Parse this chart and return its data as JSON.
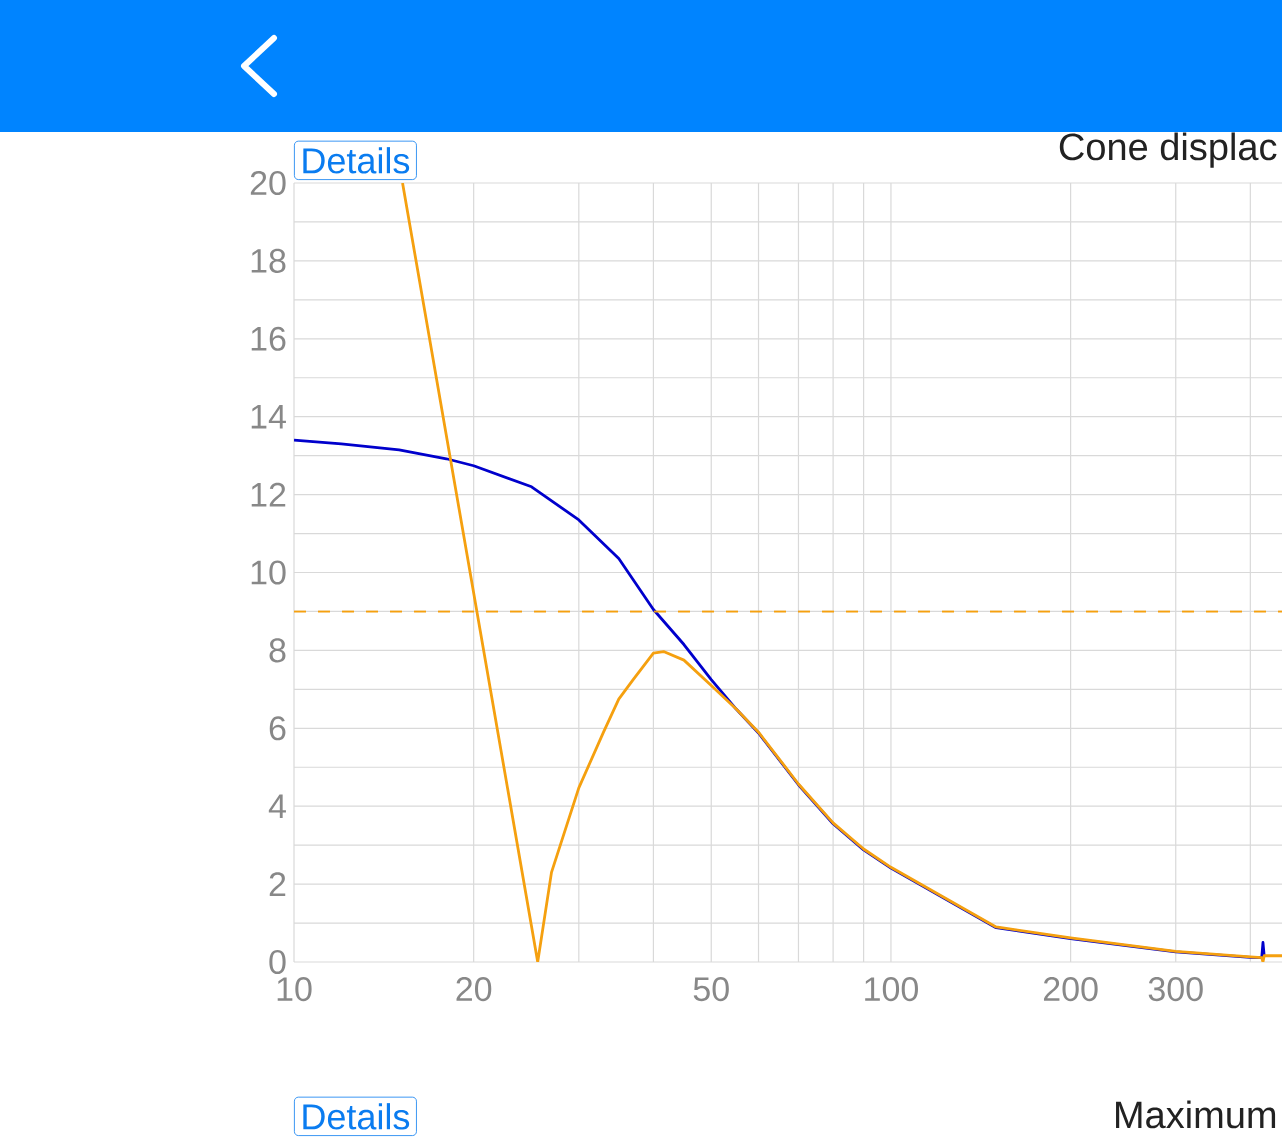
{
  "chart_data": {
    "type": "line",
    "title": "Cone displac",
    "annotations": [
      "Details",
      "Details",
      "Maximum"
    ],
    "xlim": [
      10,
      452
    ],
    "ylim": [
      0,
      20
    ],
    "log": "x",
    "grid": true,
    "xticks": [
      10,
      20,
      {
        "value": 30,
        "label": null
      },
      {
        "value": 40,
        "label": null
      },
      50,
      {
        "value": 60,
        "label": null
      },
      {
        "value": 70,
        "label": null
      },
      {
        "value": 80,
        "label": null
      },
      {
        "value": 90,
        "label": null
      },
      100,
      200,
      300,
      {
        "value": 400,
        "label": null
      }
    ],
    "yticks": [
      0,
      {
        "value": 1,
        "label": null
      },
      2,
      {
        "value": 3,
        "label": null
      },
      4,
      {
        "value": 5,
        "label": null
      },
      6,
      {
        "value": 7,
        "label": null
      },
      8,
      {
        "value": 9,
        "label": null
      },
      10,
      {
        "value": 11,
        "label": null
      },
      12,
      {
        "value": 13,
        "label": null
      },
      14,
      {
        "value": 15,
        "label": null
      },
      16,
      {
        "value": 17,
        "label": null
      },
      18,
      {
        "value": 19,
        "label": null
      },
      20
    ],
    "ref_lines": [
      {
        "axis": "y",
        "value": 9,
        "color": "#f5a00f",
        "line_style": "dashed"
      }
    ],
    "series": [
      {
        "color": "#0000cc",
        "x": [
          10,
          12,
          15,
          18,
          20,
          25,
          30,
          35,
          40,
          45,
          50,
          55,
          60,
          70,
          80,
          90,
          100,
          150,
          200,
          300,
          400,
          418,
          420,
          422
        ],
        "values": [
          13.4,
          13.3,
          13.15,
          12.92,
          12.74,
          12.2,
          11.35,
          10.36,
          9.05,
          8.15,
          7.25,
          6.5,
          5.88,
          4.55,
          3.55,
          2.88,
          2.41,
          0.88,
          0.6,
          0.26,
          0.12,
          0.11,
          0.5,
          0.15
        ]
      },
      {
        "color": "#f5a00f",
        "x": [
          15.2,
          25.6,
          27,
          30,
          33,
          35,
          37,
          40,
          41.6,
          45,
          50,
          55,
          60,
          70,
          80,
          90,
          100,
          150,
          200,
          300,
          400,
          418,
          420,
          422,
          452
        ],
        "values": [
          20,
          0,
          2.3,
          4.47,
          5.9,
          6.75,
          7.25,
          7.93,
          7.97,
          7.75,
          7.1,
          6.5,
          5.9,
          4.57,
          3.57,
          2.9,
          2.43,
          0.9,
          0.62,
          0.27,
          0.13,
          0.11,
          0,
          0.16,
          0.16
        ]
      }
    ]
  }
}
